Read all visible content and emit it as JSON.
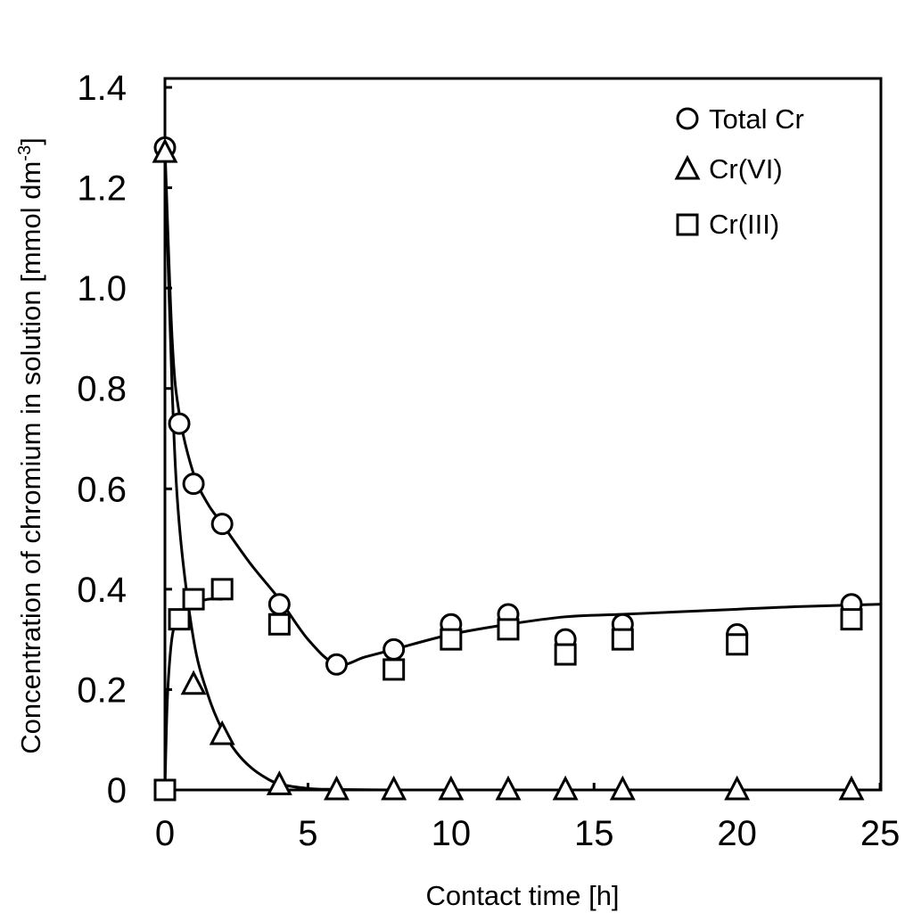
{
  "chart_data": {
    "type": "scatter",
    "title": "",
    "xlabel": "Contact time [h]",
    "ylabel": "Concentration of chromium in solution [mmol dm",
    "ylabel_sup": "-3",
    "ylabel_end": "]",
    "xlim": [
      0,
      25
    ],
    "ylim": [
      0,
      1.4
    ],
    "xticks": [
      0,
      5,
      10,
      15,
      20,
      25
    ],
    "xtick_labels": [
      "0",
      "5",
      "10",
      "15",
      "20",
      "25"
    ],
    "yticks": [
      0,
      0.2,
      0.4,
      0.6,
      0.8,
      1.0,
      1.2,
      1.4
    ],
    "ytick_labels": [
      "0",
      "0.2",
      "0.4",
      "0.6",
      "0.8",
      "1.0",
      "1.2",
      "1.4"
    ],
    "grid": false,
    "legend_position": "top-right",
    "series": [
      {
        "name": "Total Cr",
        "marker": "circle",
        "x": [
          0,
          0.5,
          1,
          2,
          4,
          6,
          8,
          10,
          12,
          14,
          16,
          20,
          24
        ],
        "values": [
          1.28,
          0.73,
          0.61,
          0.53,
          0.37,
          0.25,
          0.28,
          0.33,
          0.35,
          0.3,
          0.33,
          0.31,
          0.37
        ],
        "fit_x": [
          0,
          0.25,
          0.5,
          1,
          1.5,
          2,
          3,
          4,
          5,
          6,
          7,
          8,
          10,
          12,
          14,
          16,
          18,
          20,
          22,
          25
        ],
        "fit_y": [
          1.28,
          0.9,
          0.75,
          0.63,
          0.57,
          0.53,
          0.45,
          0.38,
          0.3,
          0.25,
          0.265,
          0.28,
          0.31,
          0.33,
          0.345,
          0.35,
          0.355,
          0.36,
          0.365,
          0.37
        ]
      },
      {
        "name": "Cr(VI)",
        "marker": "triangle",
        "x": [
          0,
          1,
          2,
          4,
          6,
          8,
          10,
          12,
          14,
          16,
          20,
          24
        ],
        "values": [
          1.27,
          0.21,
          0.11,
          0.01,
          0.0,
          0.0,
          0.0,
          0.0,
          0.0,
          0.0,
          0.0,
          0.0
        ],
        "fit_x": [
          0,
          0.25,
          0.5,
          1,
          1.5,
          2,
          2.5,
          3,
          3.5,
          4,
          5,
          6,
          8,
          10,
          15,
          20,
          25
        ],
        "fit_y": [
          1.27,
          0.8,
          0.53,
          0.3,
          0.19,
          0.12,
          0.075,
          0.045,
          0.025,
          0.012,
          0.003,
          0.001,
          0,
          0,
          0,
          0,
          0
        ]
      },
      {
        "name": "Cr(III)",
        "marker": "square",
        "x": [
          0,
          0.5,
          1,
          2,
          4,
          8,
          10,
          12,
          14,
          16,
          20,
          24
        ],
        "values": [
          0.0,
          0.34,
          0.38,
          0.4,
          0.33,
          0.24,
          0.3,
          0.32,
          0.27,
          0.3,
          0.29,
          0.34
        ],
        "fit_x": [
          0,
          0.05,
          0.1,
          0.2,
          0.3,
          0.5,
          1,
          1.5,
          2
        ],
        "fit_y": [
          0.0,
          0.12,
          0.2,
          0.28,
          0.32,
          0.35,
          0.37,
          0.38,
          0.38
        ]
      }
    ]
  }
}
